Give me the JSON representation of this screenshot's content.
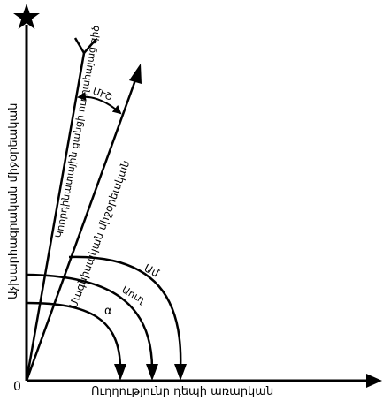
{
  "diagram": {
    "origin_label": "0",
    "x_axis_label": "Ուղղությունը դեպի առարկան",
    "y_axis_label": "Աչխարհագրական միջօրեական",
    "line_grid_north_label": "Կոորդինատային ցանցի ուղղահայաց գիծ",
    "line_magnetic_north_label": "Մագնիսական միջօրեական",
    "angle_between_label": "ՄՒՇ",
    "arc_outer_label": "Ամ",
    "arc_middle_label": "Աուղ",
    "arc_inner_label": "α",
    "star_icon": "star-icon",
    "fork_icon": "fork-icon",
    "colors": {
      "ink": "#000000",
      "background": "#ffffff"
    }
  }
}
